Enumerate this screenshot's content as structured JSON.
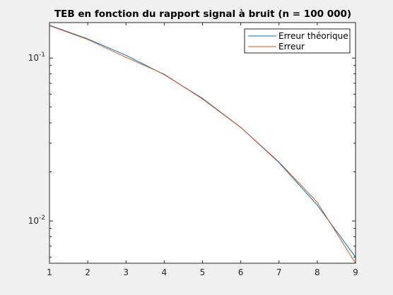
{
  "chart_data": {
    "type": "line",
    "title": "TEB en fonction du rapport signal à bruit (n = 100 000)",
    "xlabel": "",
    "ylabel": "",
    "x": [
      1,
      2,
      3,
      4,
      5,
      6,
      7,
      8,
      9
    ],
    "xlim": [
      1,
      9
    ],
    "ylim": [
      0.0055,
      0.165
    ],
    "yscale": "log",
    "x_tick_labels": [
      "1",
      "2",
      "3",
      "4",
      "5",
      "6",
      "7",
      "8",
      "9"
    ],
    "y_ticks": [
      {
        "value": 0.1,
        "base": "10",
        "exp": "-1"
      },
      {
        "value": 0.01,
        "base": "10",
        "exp": "-2"
      }
    ],
    "grid": false,
    "legend_position": "top-right",
    "series": [
      {
        "name": "Erreur théorique",
        "color": "#0072BD",
        "values": [
          0.159,
          0.131,
          0.104,
          0.079,
          0.0565,
          0.0375,
          0.0228,
          0.0125,
          0.006
        ]
      },
      {
        "name": "Erreur",
        "color": "#D95319",
        "values": [
          0.158,
          0.13,
          0.101,
          0.0795,
          0.056,
          0.0375,
          0.023,
          0.013,
          0.0055
        ]
      }
    ]
  }
}
